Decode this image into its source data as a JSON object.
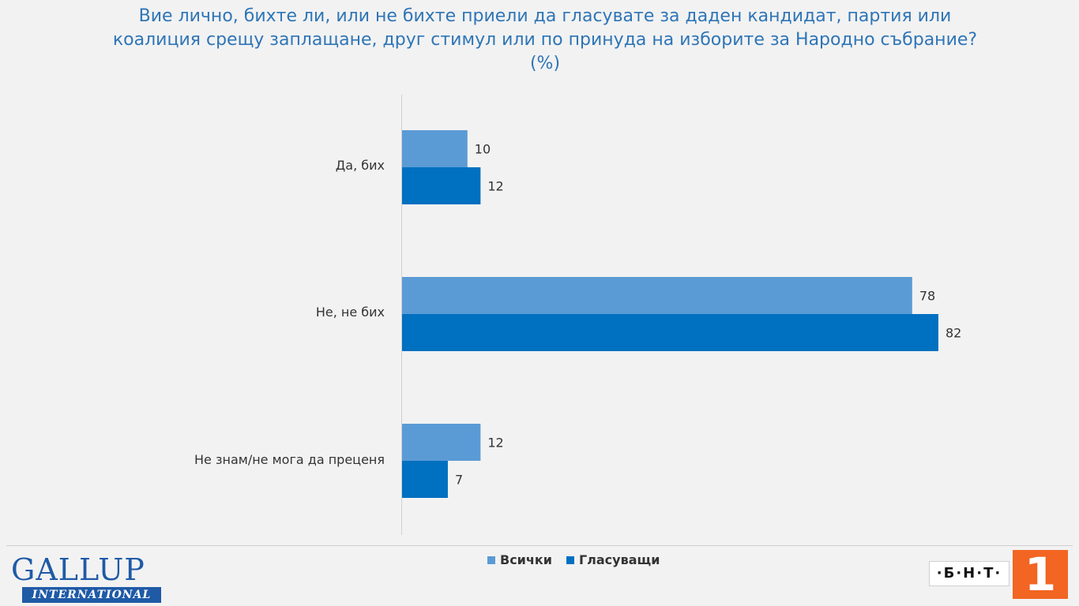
{
  "chart_data": {
    "type": "bar",
    "orientation": "horizontal",
    "title_lines": [
      "Вие лично, бихте ли, или не бихте приели да гласувате за даден кандидат, партия или",
      "коалиция срещу заплащане, друг стимул или по принуда на изборите за Народно събрание?",
      "(%)"
    ],
    "categories": [
      "Да, бих",
      "Не, не бих",
      "Не знам/не мога да преценя"
    ],
    "series": [
      {
        "name": "Всички",
        "values": [
          10,
          78,
          12
        ],
        "color": "#5b9bd5"
      },
      {
        "name": "Гласуващи",
        "values": [
          12,
          82,
          7
        ],
        "color": "#0070c0"
      }
    ],
    "xlim": [
      0,
      84
    ],
    "grid": false,
    "legend_position": "bottom"
  },
  "logos": {
    "gallup_word": "GALLUP",
    "gallup_sub": "INTERNATIONAL",
    "bnt_text": "·Б·Н·Т·",
    "bnt_number": "1",
    "bnt_color": "#f26522"
  }
}
